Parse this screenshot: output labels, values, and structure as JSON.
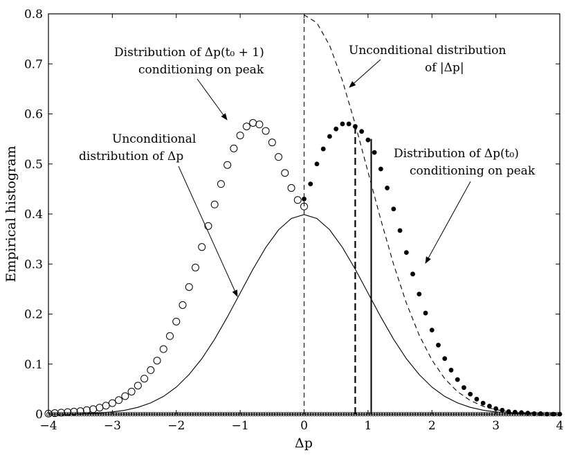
{
  "chart_data": {
    "type": "scatter",
    "title": "",
    "xlabel": "Δp",
    "ylabel": "Empirical histogram",
    "xlim": [
      -4,
      4
    ],
    "ylim": [
      0,
      0.8
    ],
    "x_ticks": [
      "−4",
      "−3",
      "−2",
      "−1",
      "0",
      "1",
      "2",
      "3",
      "4"
    ],
    "y_ticks": [
      "0",
      "0.1",
      "0.2",
      "0.3",
      "0.4",
      "0.5",
      "0.6",
      "0.7",
      "0.8"
    ],
    "grid": false,
    "series": [
      {
        "style": "solid-line",
        "x": [
          -4.0,
          -3.8,
          -3.6,
          -3.4,
          -3.2,
          -3.0,
          -2.8,
          -2.6,
          -2.4,
          -2.2,
          -2.0,
          -1.8,
          -1.6,
          -1.4,
          -1.2,
          -1.0,
          -0.8,
          -0.6,
          -0.4,
          -0.2,
          0.0,
          0.2,
          0.4,
          0.6,
          0.8,
          1.0,
          1.2,
          1.4,
          1.6,
          1.8,
          2.0,
          2.2,
          2.4,
          2.6,
          2.8,
          3.0,
          3.2,
          3.4,
          3.6,
          3.8,
          4.0
        ],
        "y": [
          0.0001,
          0.0003,
          0.0006,
          0.0012,
          0.0024,
          0.0044,
          0.0079,
          0.0136,
          0.0224,
          0.0355,
          0.054,
          0.079,
          0.1109,
          0.1497,
          0.1942,
          0.242,
          0.2897,
          0.3332,
          0.3683,
          0.391,
          0.3989,
          0.391,
          0.3683,
          0.3332,
          0.2897,
          0.242,
          0.1942,
          0.1497,
          0.1109,
          0.079,
          0.054,
          0.0355,
          0.0224,
          0.0136,
          0.0079,
          0.0044,
          0.0024,
          0.0012,
          0.0006,
          0.0003,
          0.0001
        ]
      },
      {
        "style": "dashed-line",
        "x": [
          0.0,
          0.0,
          0.2,
          0.4,
          0.6,
          0.8,
          1.0,
          1.2,
          1.4,
          1.6,
          1.8,
          2.0,
          2.2,
          2.4,
          2.6,
          2.8,
          3.0,
          3.2,
          3.4,
          3.6,
          3.8,
          4.0
        ],
        "y": [
          0.0,
          0.7979,
          0.782,
          0.7365,
          0.6664,
          0.5794,
          0.4839,
          0.3884,
          0.2995,
          0.2218,
          0.1579,
          0.108,
          0.071,
          0.0448,
          0.0272,
          0.0158,
          0.0089,
          0.0048,
          0.0025,
          0.0012,
          0.0006,
          0.0003
        ]
      },
      {
        "style": "open-circles",
        "x": [
          -4.0,
          -3.9,
          -3.8,
          -3.7,
          -3.6,
          -3.5,
          -3.4,
          -3.3,
          -3.2,
          -3.1,
          -3.0,
          -2.9,
          -2.8,
          -2.7,
          -2.6,
          -2.5,
          -2.4,
          -2.3,
          -2.2,
          -2.1,
          -2.0,
          -1.9,
          -1.8,
          -1.7,
          -1.6,
          -1.5,
          -1.4,
          -1.3,
          -1.2,
          -1.1,
          -1.0,
          -0.9,
          -0.8,
          -0.7,
          -0.6,
          -0.5,
          -0.4,
          -0.3,
          -0.2,
          -0.1,
          0.0
        ],
        "y": [
          0.001,
          0.002,
          0.003,
          0.004,
          0.005,
          0.006,
          0.008,
          0.01,
          0.013,
          0.017,
          0.022,
          0.028,
          0.036,
          0.045,
          0.057,
          0.071,
          0.088,
          0.107,
          0.13,
          0.156,
          0.185,
          0.218,
          0.254,
          0.293,
          0.334,
          0.376,
          0.419,
          0.46,
          0.498,
          0.531,
          0.557,
          0.575,
          0.582,
          0.579,
          0.566,
          0.543,
          0.514,
          0.482,
          0.452,
          0.428,
          0.415
        ]
      },
      {
        "style": "filled-dots",
        "x": [
          0.0,
          0.1,
          0.2,
          0.3,
          0.4,
          0.5,
          0.6,
          0.7,
          0.8,
          0.9,
          1.0,
          1.1,
          1.2,
          1.3,
          1.4,
          1.5,
          1.6,
          1.7,
          1.8,
          1.9,
          2.0,
          2.1,
          2.2,
          2.3,
          2.4,
          2.5,
          2.6,
          2.7,
          2.8,
          2.9,
          3.0,
          3.1,
          3.2,
          3.3,
          3.4,
          3.5,
          3.6,
          3.7,
          3.8,
          3.9,
          4.0
        ],
        "y": [
          0.43,
          0.46,
          0.5,
          0.53,
          0.555,
          0.57,
          0.58,
          0.58,
          0.575,
          0.565,
          0.548,
          0.523,
          0.49,
          0.452,
          0.41,
          0.367,
          0.323,
          0.28,
          0.24,
          0.202,
          0.168,
          0.138,
          0.111,
          0.088,
          0.069,
          0.053,
          0.04,
          0.03,
          0.022,
          0.016,
          0.011,
          0.008,
          0.005,
          0.004,
          0.003,
          0.002,
          0.001,
          0.001,
          0.0,
          0.0,
          0.0
        ]
      }
    ],
    "vertical_lines": [
      {
        "x": 0.0,
        "y_top": 0.8,
        "style": "dashed"
      },
      {
        "x": 0.8,
        "y_top": 0.58,
        "style": "thick-dashed"
      },
      {
        "x": 1.05,
        "y_top": 0.55,
        "style": "solid"
      }
    ],
    "annotations": [
      {
        "text": [
          "Distribution of Δp(t₀ + 1)",
          "conditioning on peak"
        ]
      },
      {
        "text": [
          "Unconditional distribution",
          "of |Δp|"
        ]
      },
      {
        "text": [
          "Unconditional",
          "distribution of Δp"
        ]
      },
      {
        "text": [
          "Distribution of Δp(t₀)",
          "conditioning on peak"
        ]
      }
    ]
  }
}
